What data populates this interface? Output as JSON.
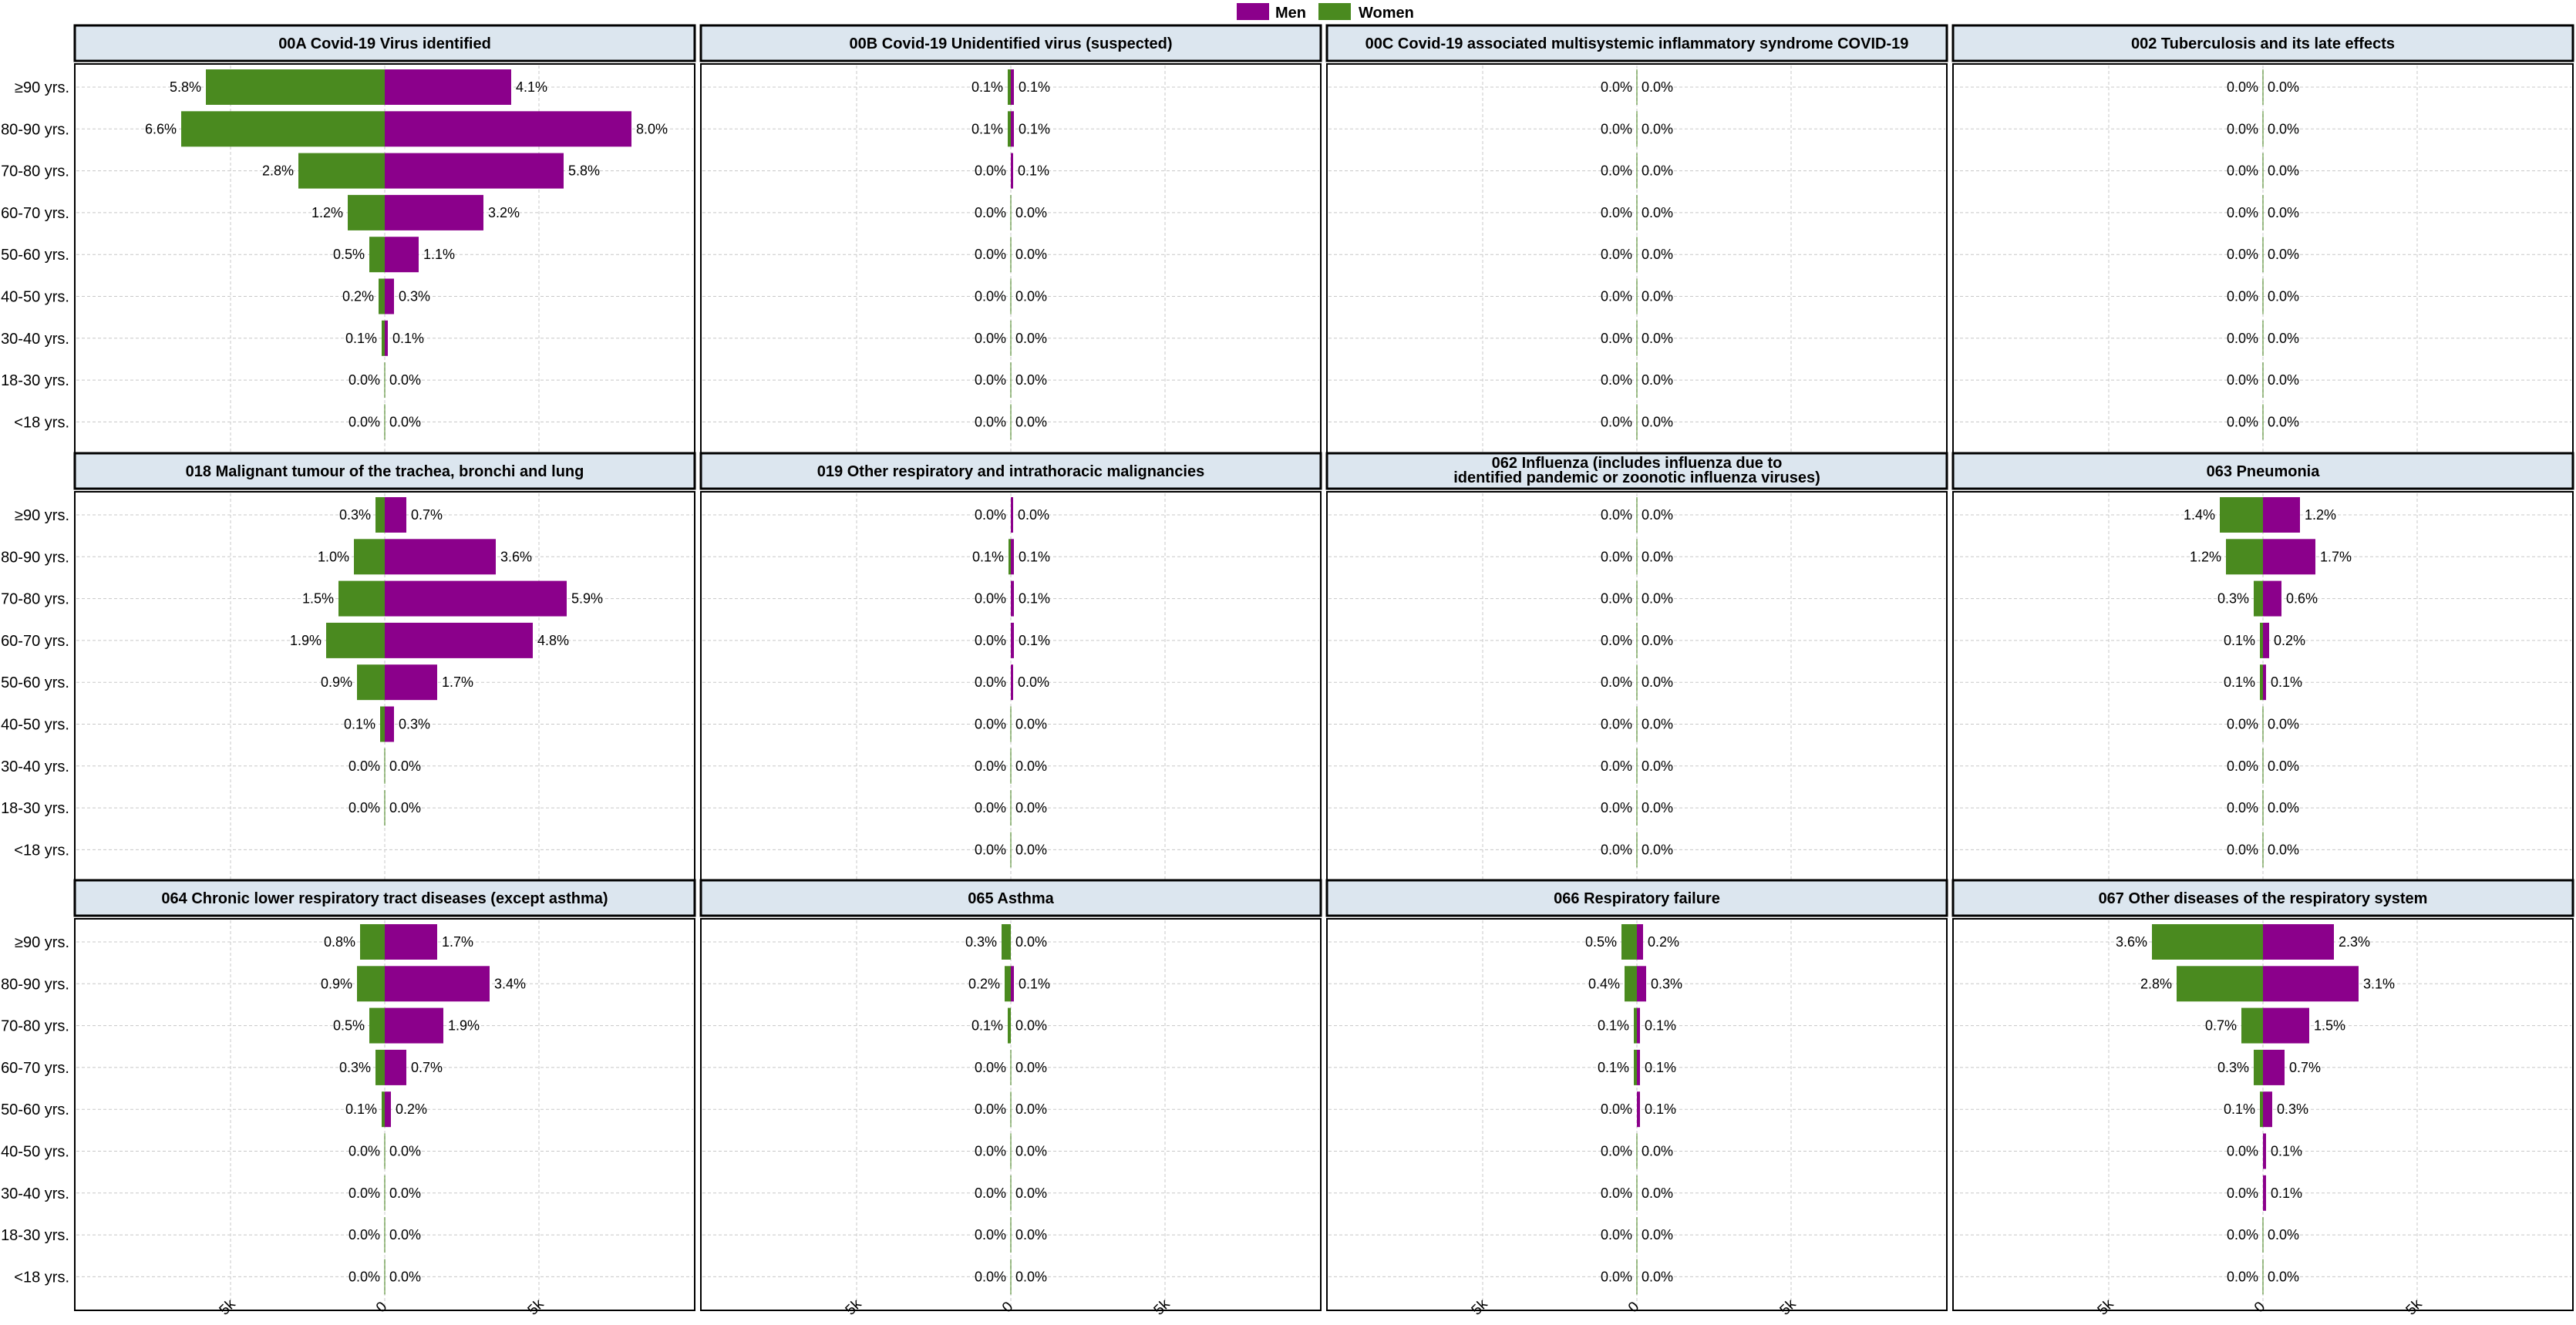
{
  "legend": {
    "items": [
      {
        "label": "Men",
        "color": "#8b008b"
      },
      {
        "label": "Women",
        "color": "#4a8a1f"
      }
    ]
  },
  "colors": {
    "men": "#8b008b",
    "women": "#4a8a1f",
    "header_bg": "#dce6ef",
    "grid": "#c8c8c8"
  },
  "chart_data": {
    "type": "bar",
    "orientation": "horizontal population pyramid",
    "age_groups": [
      "≥90 yrs.",
      "80-90 yrs.",
      "70-80 yrs.",
      "60-70 yrs.",
      "50-60 yrs.",
      "40-50 yrs.",
      "30-40 yrs.",
      "18-30 yrs.",
      "<18 yrs."
    ],
    "x_ticks": [
      "5k",
      "0",
      "5k"
    ],
    "x_range": [
      -10000,
      10000
    ],
    "grid": true,
    "legend_position": "top-center",
    "panels": [
      {
        "title": "00A Covid-19 Virus identified",
        "women_pct": [
          "5.8%",
          "6.6%",
          "2.8%",
          "1.2%",
          "0.5%",
          "0.2%",
          "0.1%",
          "0.0%",
          "0.0%"
        ],
        "men_pct": [
          "4.1%",
          "8.0%",
          "5.8%",
          "3.2%",
          "1.1%",
          "0.3%",
          "0.1%",
          "0.0%",
          "0.0%"
        ],
        "women_values": [
          5800,
          6600,
          2800,
          1200,
          500,
          200,
          100,
          0,
          0
        ],
        "men_values": [
          4100,
          8000,
          5800,
          3200,
          1100,
          300,
          100,
          0,
          0
        ]
      },
      {
        "title": "00B Covid-19 Unidentified virus (suspected)",
        "women_pct": [
          "0.1%",
          "0.1%",
          "0.0%",
          "0.0%",
          "0.0%",
          "0.0%",
          "0.0%",
          "0.0%",
          "0.0%"
        ],
        "men_pct": [
          "0.1%",
          "0.1%",
          "0.1%",
          "0.0%",
          "0.0%",
          "0.0%",
          "0.0%",
          "0.0%",
          "0.0%"
        ],
        "women_values": [
          100,
          100,
          0,
          0,
          0,
          0,
          0,
          0,
          0
        ],
        "men_values": [
          100,
          100,
          50,
          0,
          0,
          0,
          0,
          0,
          0
        ]
      },
      {
        "title": "00C Covid-19 associated multisystemic inflammatory syndrome COVID-19",
        "women_pct": [
          "0.0%",
          "0.0%",
          "0.0%",
          "0.0%",
          "0.0%",
          "0.0%",
          "0.0%",
          "0.0%",
          "0.0%"
        ],
        "men_pct": [
          "0.0%",
          "0.0%",
          "0.0%",
          "0.0%",
          "0.0%",
          "0.0%",
          "0.0%",
          "0.0%",
          "0.0%"
        ],
        "women_values": [
          0,
          0,
          0,
          0,
          0,
          0,
          0,
          0,
          0
        ],
        "men_values": [
          0,
          0,
          0,
          0,
          0,
          0,
          0,
          0,
          0
        ]
      },
      {
        "title": "002 Tuberculosis and its late effects",
        "women_pct": [
          "0.0%",
          "0.0%",
          "0.0%",
          "0.0%",
          "0.0%",
          "0.0%",
          "0.0%",
          "0.0%",
          "0.0%"
        ],
        "men_pct": [
          "0.0%",
          "0.0%",
          "0.0%",
          "0.0%",
          "0.0%",
          "0.0%",
          "0.0%",
          "0.0%",
          "0.0%"
        ],
        "women_values": [
          0,
          0,
          0,
          0,
          0,
          0,
          0,
          0,
          0
        ],
        "men_values": [
          0,
          0,
          0,
          0,
          0,
          0,
          0,
          0,
          0
        ]
      },
      {
        "title": "018 Malignant tumour of the trachea, bronchi and lung",
        "women_pct": [
          "0.3%",
          "1.0%",
          "1.5%",
          "1.9%",
          "0.9%",
          "0.1%",
          "0.0%",
          "0.0%",
          ""
        ],
        "men_pct": [
          "0.7%",
          "3.6%",
          "5.9%",
          "4.8%",
          "1.7%",
          "0.3%",
          "0.0%",
          "0.0%",
          ""
        ],
        "women_values": [
          300,
          1000,
          1500,
          1900,
          900,
          150,
          0,
          0,
          0
        ],
        "men_values": [
          700,
          3600,
          5900,
          4800,
          1700,
          300,
          0,
          0,
          0
        ]
      },
      {
        "title": "019 Other respiratory and intrathoracic malignancies",
        "women_pct": [
          "0.0%",
          "0.1%",
          "0.0%",
          "0.0%",
          "0.0%",
          "0.0%",
          "0.0%",
          "0.0%",
          "0.0%"
        ],
        "men_pct": [
          "0.0%",
          "0.1%",
          "0.1%",
          "0.1%",
          "0.0%",
          "0.0%",
          "0.0%",
          "0.0%",
          "0.0%"
        ],
        "women_values": [
          0,
          50,
          0,
          0,
          0,
          0,
          0,
          0,
          0
        ],
        "men_values": [
          50,
          100,
          100,
          100,
          50,
          0,
          0,
          0,
          0
        ]
      },
      {
        "title": "062 Influenza (includes influenza due to identified pandemic or zoonotic influenza viruses)",
        "title_lines": [
          "062 Influenza (includes influenza due to",
          "identified pandemic or zoonotic influenza viruses)"
        ],
        "women_pct": [
          "0.0%",
          "0.0%",
          "0.0%",
          "0.0%",
          "0.0%",
          "0.0%",
          "0.0%",
          "0.0%",
          "0.0%"
        ],
        "men_pct": [
          "0.0%",
          "0.0%",
          "0.0%",
          "0.0%",
          "0.0%",
          "0.0%",
          "0.0%",
          "0.0%",
          "0.0%"
        ],
        "women_values": [
          0,
          0,
          0,
          0,
          0,
          0,
          0,
          0,
          0
        ],
        "men_values": [
          0,
          0,
          0,
          0,
          0,
          0,
          0,
          0,
          0
        ]
      },
      {
        "title": "063 Pneumonia",
        "women_pct": [
          "1.4%",
          "1.2%",
          "0.3%",
          "0.1%",
          "0.1%",
          "0.0%",
          "0.0%",
          "0.0%",
          "0.0%"
        ],
        "men_pct": [
          "1.2%",
          "1.7%",
          "0.6%",
          "0.2%",
          "0.1%",
          "0.0%",
          "0.0%",
          "0.0%",
          "0.0%"
        ],
        "women_values": [
          1400,
          1200,
          300,
          100,
          100,
          0,
          0,
          0,
          0
        ],
        "men_values": [
          1200,
          1700,
          600,
          200,
          100,
          0,
          0,
          0,
          0
        ]
      },
      {
        "title": "064 Chronic lower respiratory tract diseases (except asthma)",
        "women_pct": [
          "0.8%",
          "0.9%",
          "0.5%",
          "0.3%",
          "0.1%",
          "0.0%",
          "0.0%",
          "0.0%",
          "0.0%"
        ],
        "men_pct": [
          "1.7%",
          "3.4%",
          "1.9%",
          "0.7%",
          "0.2%",
          "0.0%",
          "0.0%",
          "0.0%",
          "0.0%"
        ],
        "women_values": [
          800,
          900,
          500,
          300,
          100,
          0,
          0,
          0,
          0
        ],
        "men_values": [
          1700,
          3400,
          1900,
          700,
          200,
          0,
          0,
          0,
          0
        ]
      },
      {
        "title": "065 Asthma",
        "women_pct": [
          "0.3%",
          "0.2%",
          "0.1%",
          "0.0%",
          "0.0%",
          "0.0%",
          "0.0%",
          "0.0%",
          "0.0%"
        ],
        "men_pct": [
          "0.0%",
          "0.1%",
          "0.0%",
          "0.0%",
          "0.0%",
          "0.0%",
          "0.0%",
          "0.0%",
          "0.0%"
        ],
        "women_values": [
          300,
          200,
          100,
          0,
          0,
          0,
          0,
          0,
          0
        ],
        "men_values": [
          0,
          100,
          0,
          0,
          0,
          0,
          0,
          0,
          0
        ]
      },
      {
        "title": "066 Respiratory failure",
        "women_pct": [
          "0.5%",
          "0.4%",
          "0.1%",
          "0.1%",
          "0.0%",
          "0.0%",
          "0.0%",
          "0.0%",
          "0.0%"
        ],
        "men_pct": [
          "0.2%",
          "0.3%",
          "0.1%",
          "0.1%",
          "0.1%",
          "0.0%",
          "0.0%",
          "0.0%",
          "0.0%"
        ],
        "women_values": [
          500,
          400,
          100,
          100,
          0,
          0,
          0,
          0,
          0
        ],
        "men_values": [
          200,
          300,
          100,
          100,
          100,
          0,
          0,
          0,
          0
        ]
      },
      {
        "title": "067 Other diseases of the respiratory system",
        "women_pct": [
          "3.6%",
          "2.8%",
          "0.7%",
          "0.3%",
          "0.1%",
          "0.0%",
          "0.0%",
          "0.0%",
          "0.0%"
        ],
        "men_pct": [
          "2.3%",
          "3.1%",
          "1.5%",
          "0.7%",
          "0.3%",
          "0.1%",
          "0.1%",
          "0.0%",
          "0.0%"
        ],
        "women_values": [
          3600,
          2800,
          700,
          300,
          100,
          0,
          0,
          0,
          0
        ],
        "men_values": [
          2300,
          3100,
          1500,
          700,
          300,
          100,
          100,
          0,
          0
        ]
      }
    ]
  }
}
